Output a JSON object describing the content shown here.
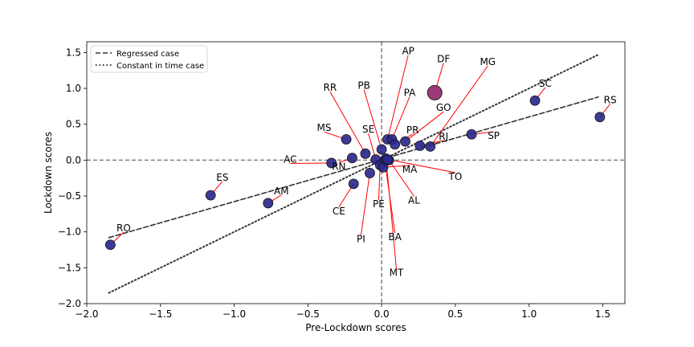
{
  "chart_data": {
    "type": "scatter",
    "xlabel": "Pre-Lockdown scores",
    "ylabel": "Lockdown scores",
    "xlim": [
      -2.0,
      1.65
    ],
    "ylim": [
      -2.0,
      1.65
    ],
    "xticks": [
      -2.0,
      -1.5,
      -1.0,
      -0.5,
      0.0,
      0.5,
      1.0,
      1.5
    ],
    "xtick_labels": [
      "−2.0",
      "−1.5",
      "−1.0",
      "−0.5",
      "0.0",
      "0.5",
      "1.0",
      "1.5"
    ],
    "yticks": [
      -2.0,
      -1.5,
      -1.0,
      -0.5,
      0.0,
      0.5,
      1.0,
      1.5
    ],
    "ytick_labels": [
      "−2.0",
      "−1.5",
      "−1.0",
      "−0.5",
      "0.0",
      "0.5",
      "1.0",
      "1.5"
    ],
    "grid": false,
    "legend_position": "top-left",
    "reference_lines": {
      "x": 0,
      "y": 0,
      "style": "dashed",
      "color": "#808080"
    },
    "series_lines": [
      {
        "name": "Regressed case",
        "style": "dashed",
        "color": "#333333",
        "x": [
          -1.85,
          1.47
        ],
        "y": [
          -1.08,
          0.88
        ]
      },
      {
        "name": "Constant in time case",
        "style": "dotted",
        "color": "#333333",
        "x": [
          -1.85,
          1.47
        ],
        "y": [
          -1.85,
          1.47
        ]
      }
    ],
    "point_color": "#2b2a8c",
    "highlight_color": "#9b3a7a",
    "points": [
      {
        "label": "RO",
        "x": -1.84,
        "y": -1.18,
        "lx": -1.75,
        "ly": -0.95
      },
      {
        "label": "ES",
        "x": -1.16,
        "y": -0.49,
        "lx": -1.08,
        "ly": -0.24
      },
      {
        "label": "AM",
        "x": -0.77,
        "y": -0.6,
        "lx": -0.68,
        "ly": -0.43
      },
      {
        "label": "AC",
        "x": -0.34,
        "y": -0.04,
        "lx": -0.62,
        "ly": 0.01
      },
      {
        "label": "RN",
        "x": -0.2,
        "y": 0.03,
        "lx": -0.29,
        "ly": -0.09
      },
      {
        "label": "CE",
        "x": -0.19,
        "y": -0.33,
        "lx": -0.29,
        "ly": -0.71
      },
      {
        "label": "MS",
        "x": -0.24,
        "y": 0.29,
        "lx": -0.39,
        "ly": 0.45
      },
      {
        "label": "RR",
        "x": -0.11,
        "y": 0.09,
        "lx": -0.35,
        "ly": 1.01
      },
      {
        "label": "PI",
        "x": -0.08,
        "y": -0.18,
        "lx": -0.14,
        "ly": -1.1
      },
      {
        "label": "SE",
        "x": -0.04,
        "y": 0.01,
        "lx": -0.09,
        "ly": 0.43
      },
      {
        "label": "PE",
        "x": -0.01,
        "y": -0.07,
        "lx": -0.02,
        "ly": -0.61
      },
      {
        "label": "MA",
        "x": 0.01,
        "y": -0.1,
        "lx": 0.19,
        "ly": -0.13
      },
      {
        "label": "PB",
        "x": 0.0,
        "y": 0.15,
        "lx": -0.12,
        "ly": 1.04
      },
      {
        "label": "BA",
        "x": 0.02,
        "y": 0.0,
        "lx": 0.09,
        "ly": -1.07
      },
      {
        "label": "MT",
        "x": 0.03,
        "y": 0.02,
        "lx": 0.1,
        "ly": -1.57
      },
      {
        "label": "AL",
        "x": 0.05,
        "y": 0.0,
        "lx": 0.22,
        "ly": -0.56
      },
      {
        "label": "TO",
        "x": 0.04,
        "y": 0.01,
        "lx": 0.5,
        "ly": -0.23
      },
      {
        "label": "AP",
        "x": 0.04,
        "y": 0.29,
        "lx": 0.18,
        "ly": 1.52
      },
      {
        "label": "PA",
        "x": 0.07,
        "y": 0.29,
        "lx": 0.19,
        "ly": 0.94
      },
      {
        "label": "PR",
        "x": 0.09,
        "y": 0.22,
        "lx": 0.21,
        "ly": 0.42
      },
      {
        "label": "GO",
        "x": 0.16,
        "y": 0.26,
        "lx": 0.42,
        "ly": 0.73
      },
      {
        "label": "RJ",
        "x": 0.26,
        "y": 0.2,
        "lx": 0.42,
        "ly": 0.33
      },
      {
        "label": "MG",
        "x": 0.33,
        "y": 0.19,
        "lx": 0.72,
        "ly": 1.37
      },
      {
        "label": "DF",
        "x": 0.36,
        "y": 0.94,
        "lx": 0.42,
        "ly": 1.41
      },
      {
        "label": "SP",
        "x": 0.61,
        "y": 0.36,
        "lx": 0.76,
        "ly": 0.34
      },
      {
        "label": "SC",
        "x": 1.04,
        "y": 0.83,
        "lx": 1.11,
        "ly": 1.07
      },
      {
        "label": "RS",
        "x": 1.48,
        "y": 0.6,
        "lx": 1.55,
        "ly": 0.84
      }
    ],
    "highlighted": [
      "DF"
    ],
    "annotation_color": "#ff0000"
  }
}
